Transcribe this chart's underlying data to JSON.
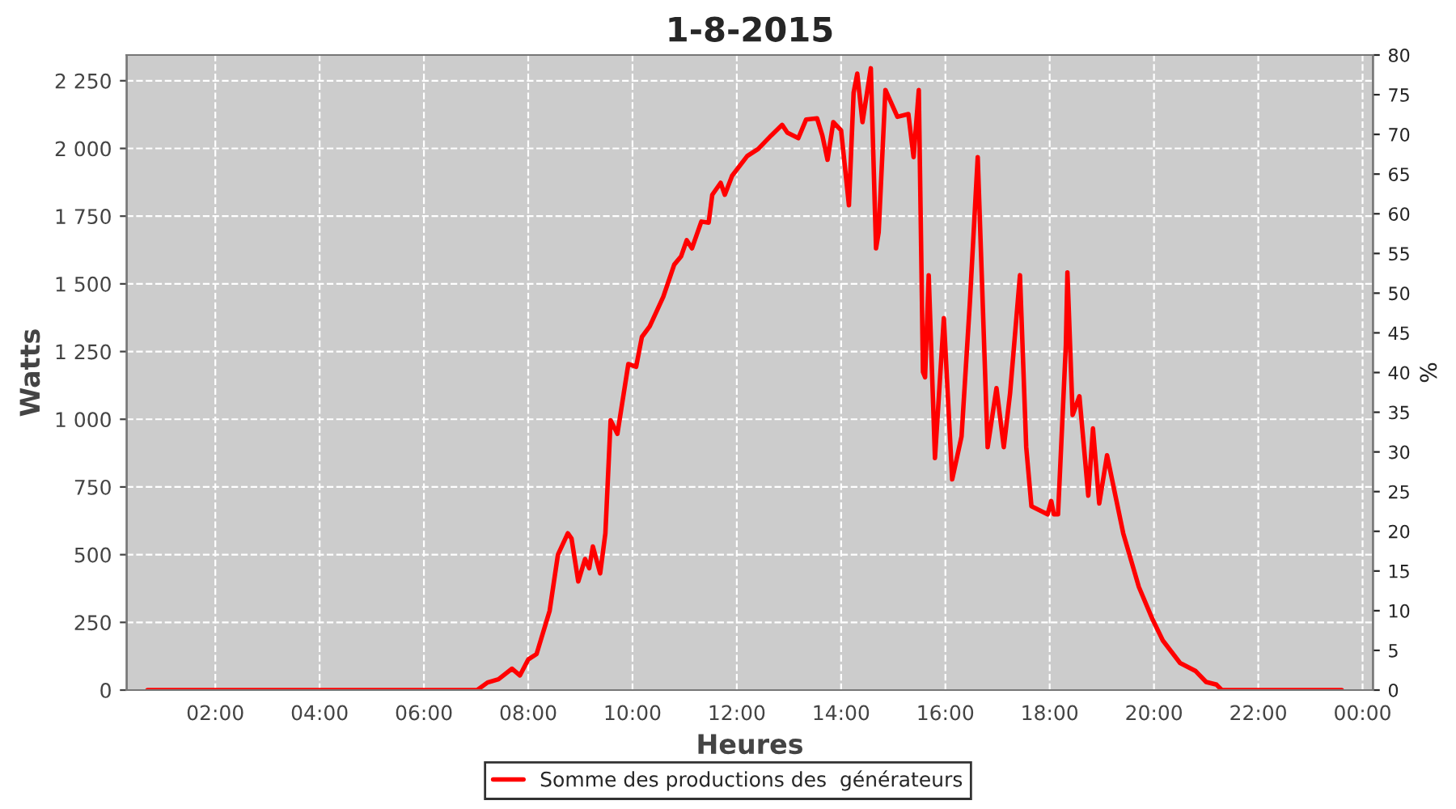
{
  "chart_data": {
    "type": "line",
    "title": "1-8-2015",
    "xlabel": "Heures",
    "ylabel": "Watts",
    "y2label": "%",
    "xlim": [
      0.3,
      24.2
    ],
    "xticks": [
      {
        "value": 2,
        "label": "02:00"
      },
      {
        "value": 4,
        "label": "04:00"
      },
      {
        "value": 6,
        "label": "06:00"
      },
      {
        "value": 8,
        "label": "08:00"
      },
      {
        "value": 10,
        "label": "10:00"
      },
      {
        "value": 12,
        "label": "12:00"
      },
      {
        "value": 14,
        "label": "14:00"
      },
      {
        "value": 16,
        "label": "16:00"
      },
      {
        "value": 18,
        "label": "18:00"
      },
      {
        "value": 20,
        "label": "20:00"
      },
      {
        "value": 22,
        "label": "22:00"
      },
      {
        "value": 24,
        "label": "00:00"
      }
    ],
    "ylim": [
      0,
      2345
    ],
    "yticks": [
      0,
      250,
      500,
      750,
      {
        "value": 1000,
        "label": "1 000"
      },
      {
        "value": 1250,
        "label": "1 250"
      },
      {
        "value": 1500,
        "label": "1 500"
      },
      {
        "value": 1750,
        "label": "1 750"
      },
      {
        "value": 2000,
        "label": "2 000"
      },
      {
        "value": 2250,
        "label": "2 250"
      }
    ],
    "y2lim": [
      0,
      80
    ],
    "y2ticks": [
      0,
      5,
      10,
      15,
      20,
      25,
      30,
      35,
      40,
      45,
      50,
      55,
      60,
      65,
      70,
      75,
      80
    ],
    "grid": true,
    "legend": "bottom",
    "line_style": "solid",
    "series": [
      {
        "name": "Somme des productions des  générateurs",
        "color": "#ff0000",
        "x": [
          0.7,
          2,
          3,
          4,
          5,
          6,
          6.6,
          7.02,
          7.22,
          7.43,
          7.69,
          7.84,
          8.0,
          8.16,
          8.41,
          8.57,
          8.76,
          8.83,
          8.96,
          9.09,
          9.17,
          9.24,
          9.38,
          9.48,
          9.58,
          9.71,
          9.92,
          10.07,
          10.18,
          10.33,
          10.59,
          10.8,
          10.93,
          11.04,
          11.14,
          11.32,
          11.46,
          11.53,
          11.69,
          11.77,
          11.91,
          12.2,
          12.41,
          12.66,
          12.87,
          12.97,
          13.18,
          13.33,
          13.54,
          13.64,
          13.74,
          13.85,
          14.0,
          14.15,
          14.24,
          14.31,
          14.41,
          14.57,
          14.67,
          14.72,
          14.85,
          15.08,
          15.29,
          15.39,
          15.49,
          15.57,
          15.61,
          15.68,
          15.8,
          15.97,
          16.13,
          16.31,
          16.47,
          16.62,
          16.81,
          16.98,
          17.12,
          17.24,
          17.43,
          17.55,
          17.65,
          17.96,
          18.03,
          18.08,
          18.16,
          18.31,
          18.34,
          18.44,
          18.57,
          18.74,
          18.83,
          18.95,
          19.1,
          19.26,
          19.41,
          19.71,
          19.97,
          20.17,
          20.5,
          20.8,
          21.0,
          21.2,
          21.3,
          22,
          23,
          23.6
        ],
        "values": [
          0,
          0,
          0,
          0,
          0,
          0,
          0,
          0,
          28,
          40,
          79,
          54,
          113,
          133,
          292,
          500,
          579,
          560,
          401,
          484,
          450,
          530,
          431,
          579,
          996,
          946,
          1204,
          1194,
          1304,
          1343,
          1452,
          1571,
          1601,
          1661,
          1631,
          1730,
          1726,
          1829,
          1873,
          1829,
          1899,
          1972,
          1998,
          2048,
          2087,
          2058,
          2038,
          2107,
          2111,
          2048,
          1958,
          2097,
          2067,
          1790,
          2206,
          2276,
          2097,
          2296,
          1631,
          1690,
          2216,
          2117,
          2127,
          1968,
          2216,
          1175,
          1155,
          1532,
          857,
          1373,
          778,
          937,
          1433,
          1968,
          897,
          1115,
          897,
          1095,
          1532,
          897,
          679,
          649,
          698,
          649,
          649,
          1274,
          1542,
          1016,
          1085,
          718,
          966,
          689,
          867,
          718,
          579,
          381,
          262,
          183,
          100,
          70,
          30,
          20,
          0,
          0,
          0,
          0
        ]
      }
    ]
  }
}
